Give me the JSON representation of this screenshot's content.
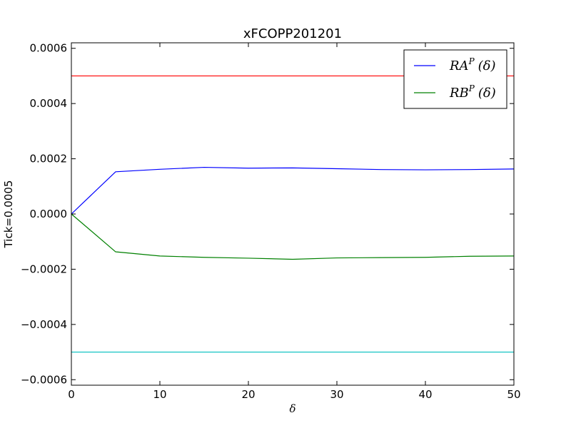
{
  "chart_data": {
    "type": "line",
    "title": "xFCOPP201201",
    "xlabel": "δ",
    "ylabel": "Tick=0.0005",
    "xlim": [
      0,
      50
    ],
    "ylim": [
      -0.00062,
      0.00062
    ],
    "x_ticks": [
      0,
      10,
      20,
      30,
      40,
      50
    ],
    "y_ticks": [
      -0.0006,
      -0.0004,
      -0.0002,
      0.0,
      0.0002,
      0.0004,
      0.0006
    ],
    "x_tick_labels": [
      "0",
      "10",
      "20",
      "30",
      "40",
      "50"
    ],
    "y_tick_labels": [
      "−0.0006",
      "−0.0004",
      "−0.0002",
      "0.0000",
      "0.0002",
      "0.0004",
      "0.0006"
    ],
    "grid": false,
    "legend_position": "top-right",
    "x": [
      0,
      5,
      10,
      15,
      20,
      25,
      30,
      35,
      40,
      45,
      50
    ],
    "series": [
      {
        "name": "RA^P (δ)",
        "legend": {
          "base": "RA",
          "sup": "P",
          "arg": "(δ)"
        },
        "color": "#0000ff",
        "values": [
          0.0,
          0.000153,
          0.000162,
          0.000169,
          0.000166,
          0.000167,
          0.000164,
          0.000161,
          0.00016,
          0.000161,
          0.000163
        ]
      },
      {
        "name": "RB^P (δ)",
        "legend": {
          "base": "RB",
          "sup": "P",
          "arg": "(δ)"
        },
        "color": "#008000",
        "values": [
          0.0,
          -0.000137,
          -0.000152,
          -0.000157,
          -0.00016,
          -0.000164,
          -0.000159,
          -0.000158,
          -0.000157,
          -0.000153,
          -0.000152
        ]
      }
    ],
    "reference_lines": [
      {
        "y": 0.0005,
        "color": "#ff0000"
      },
      {
        "y": -0.0005,
        "color": "#00bfbf"
      }
    ]
  }
}
